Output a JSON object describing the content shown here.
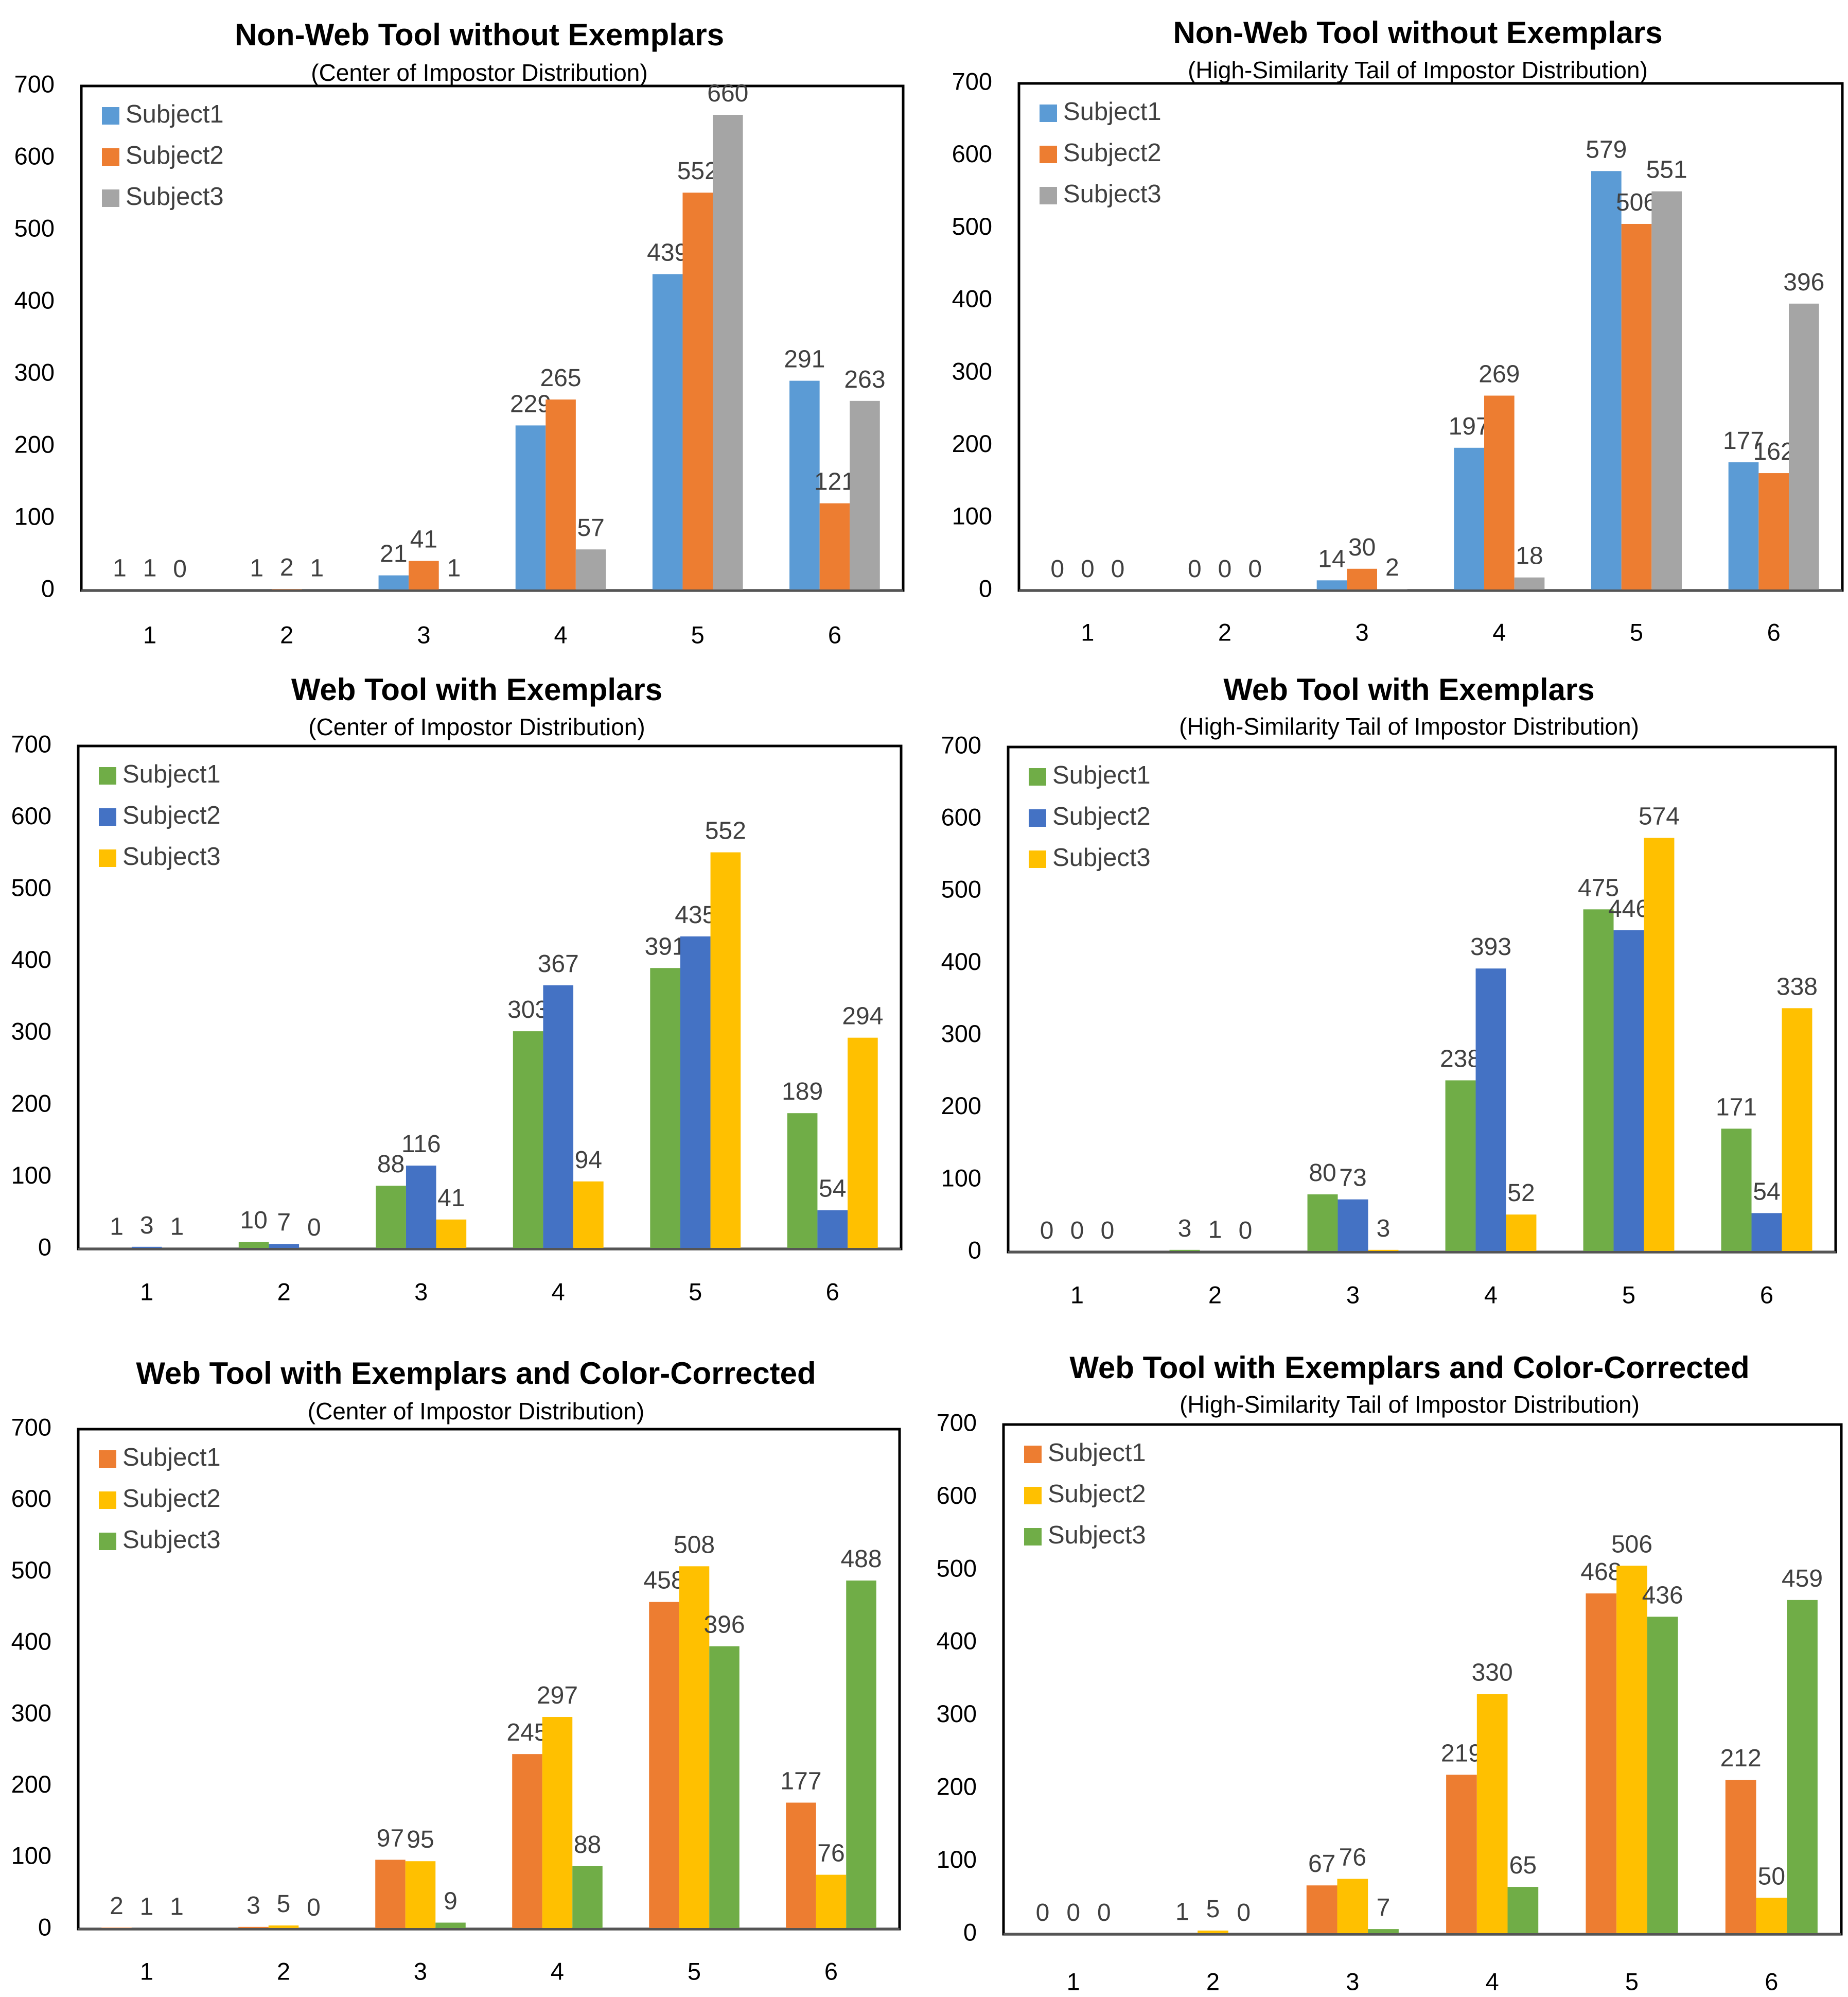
{
  "chart_data": [
    {
      "type": "bar",
      "title": "Non-Web Tool without Exemplars",
      "subtitle": "(Center of Impostor Distribution)",
      "categories": [
        "1",
        "2",
        "3",
        "4",
        "5",
        "6"
      ],
      "series": [
        {
          "name": "Subject1",
          "color": "#5B9BD5",
          "values": [
            1,
            1,
            21,
            229,
            439,
            291
          ]
        },
        {
          "name": "Subject2",
          "color": "#ED7D31",
          "values": [
            1,
            2,
            41,
            265,
            552,
            121
          ]
        },
        {
          "name": "Subject3",
          "color": "#A5A5A5",
          "values": [
            0,
            1,
            1,
            57,
            660,
            263
          ]
        }
      ],
      "yticks": [
        0,
        100,
        200,
        300,
        400,
        500,
        600,
        700
      ],
      "ylim": [
        0,
        700
      ],
      "legend": "top-left"
    },
    {
      "type": "bar",
      "title": "Non-Web Tool without Exemplars",
      "subtitle": "(High-Similarity Tail of Impostor Distribution)",
      "categories": [
        "1",
        "2",
        "3",
        "4",
        "5",
        "6"
      ],
      "series": [
        {
          "name": "Subject1",
          "color": "#5B9BD5",
          "values": [
            0,
            0,
            14,
            197,
            579,
            177
          ]
        },
        {
          "name": "Subject2",
          "color": "#ED7D31",
          "values": [
            0,
            0,
            30,
            269,
            506,
            162
          ]
        },
        {
          "name": "Subject3",
          "color": "#A5A5A5",
          "values": [
            0,
            0,
            2,
            18,
            551,
            396
          ]
        }
      ],
      "yticks": [
        0,
        100,
        200,
        300,
        400,
        500,
        600,
        700
      ],
      "ylim": [
        0,
        700
      ],
      "legend": "top-left"
    },
    {
      "type": "bar",
      "title": "Web Tool with Exemplars",
      "subtitle": "(Center of Impostor Distribution)",
      "categories": [
        "1",
        "2",
        "3",
        "4",
        "5",
        "6"
      ],
      "series": [
        {
          "name": "Subject1",
          "color": "#70AD47",
          "values": [
            1,
            10,
            88,
            303,
            391,
            189
          ]
        },
        {
          "name": "Subject2",
          "color": "#4472C4",
          "values": [
            3,
            7,
            116,
            367,
            435,
            54
          ]
        },
        {
          "name": "Subject3",
          "color": "#FFC000",
          "values": [
            1,
            0,
            41,
            94,
            552,
            294
          ]
        }
      ],
      "yticks": [
        0,
        100,
        200,
        300,
        400,
        500,
        600,
        700
      ],
      "ylim": [
        0,
        700
      ],
      "legend": "top-left"
    },
    {
      "type": "bar",
      "title": "Web Tool with Exemplars",
      "subtitle": "(High-Similarity Tail of Impostor Distribution)",
      "categories": [
        "1",
        "2",
        "3",
        "4",
        "5",
        "6"
      ],
      "series": [
        {
          "name": "Subject1",
          "color": "#70AD47",
          "values": [
            0,
            3,
            80,
            238,
            475,
            171
          ]
        },
        {
          "name": "Subject2",
          "color": "#4472C4",
          "values": [
            0,
            1,
            73,
            393,
            446,
            54
          ]
        },
        {
          "name": "Subject3",
          "color": "#FFC000",
          "values": [
            0,
            0,
            3,
            52,
            574,
            338
          ]
        }
      ],
      "yticks": [
        0,
        100,
        200,
        300,
        400,
        500,
        600,
        700
      ],
      "ylim": [
        0,
        700
      ],
      "legend": "top-left"
    },
    {
      "type": "bar",
      "title": "Web Tool with Exemplars and Color-Corrected",
      "subtitle": "(Center of Impostor Distribution)",
      "categories": [
        "1",
        "2",
        "3",
        "4",
        "5",
        "6"
      ],
      "series": [
        {
          "name": "Subject1",
          "color": "#ED7D31",
          "values": [
            2,
            3,
            97,
            245,
            458,
            177
          ]
        },
        {
          "name": "Subject2",
          "color": "#FFC000",
          "values": [
            1,
            5,
            95,
            297,
            508,
            76
          ]
        },
        {
          "name": "Subject3",
          "color": "#70AD47",
          "values": [
            1,
            0,
            9,
            88,
            396,
            488
          ]
        }
      ],
      "yticks": [
        0,
        100,
        200,
        300,
        400,
        500,
        600,
        700
      ],
      "ylim": [
        0,
        700
      ],
      "legend": "top-left"
    },
    {
      "type": "bar",
      "title": "Web Tool with Exemplars and Color-Corrected",
      "subtitle": "(High-Similarity Tail of Impostor Distribution)",
      "categories": [
        "1",
        "2",
        "3",
        "4",
        "5",
        "6"
      ],
      "series": [
        {
          "name": "Subject1",
          "color": "#ED7D31",
          "values": [
            0,
            1,
            67,
            219,
            468,
            212
          ]
        },
        {
          "name": "Subject2",
          "color": "#FFC000",
          "values": [
            0,
            5,
            76,
            330,
            506,
            50
          ]
        },
        {
          "name": "Subject3",
          "color": "#70AD47",
          "values": [
            0,
            0,
            7,
            65,
            436,
            459
          ]
        }
      ],
      "yticks": [
        0,
        100,
        200,
        300,
        400,
        500,
        600,
        700
      ],
      "ylim": [
        0,
        700
      ],
      "legend": "top-left"
    }
  ]
}
